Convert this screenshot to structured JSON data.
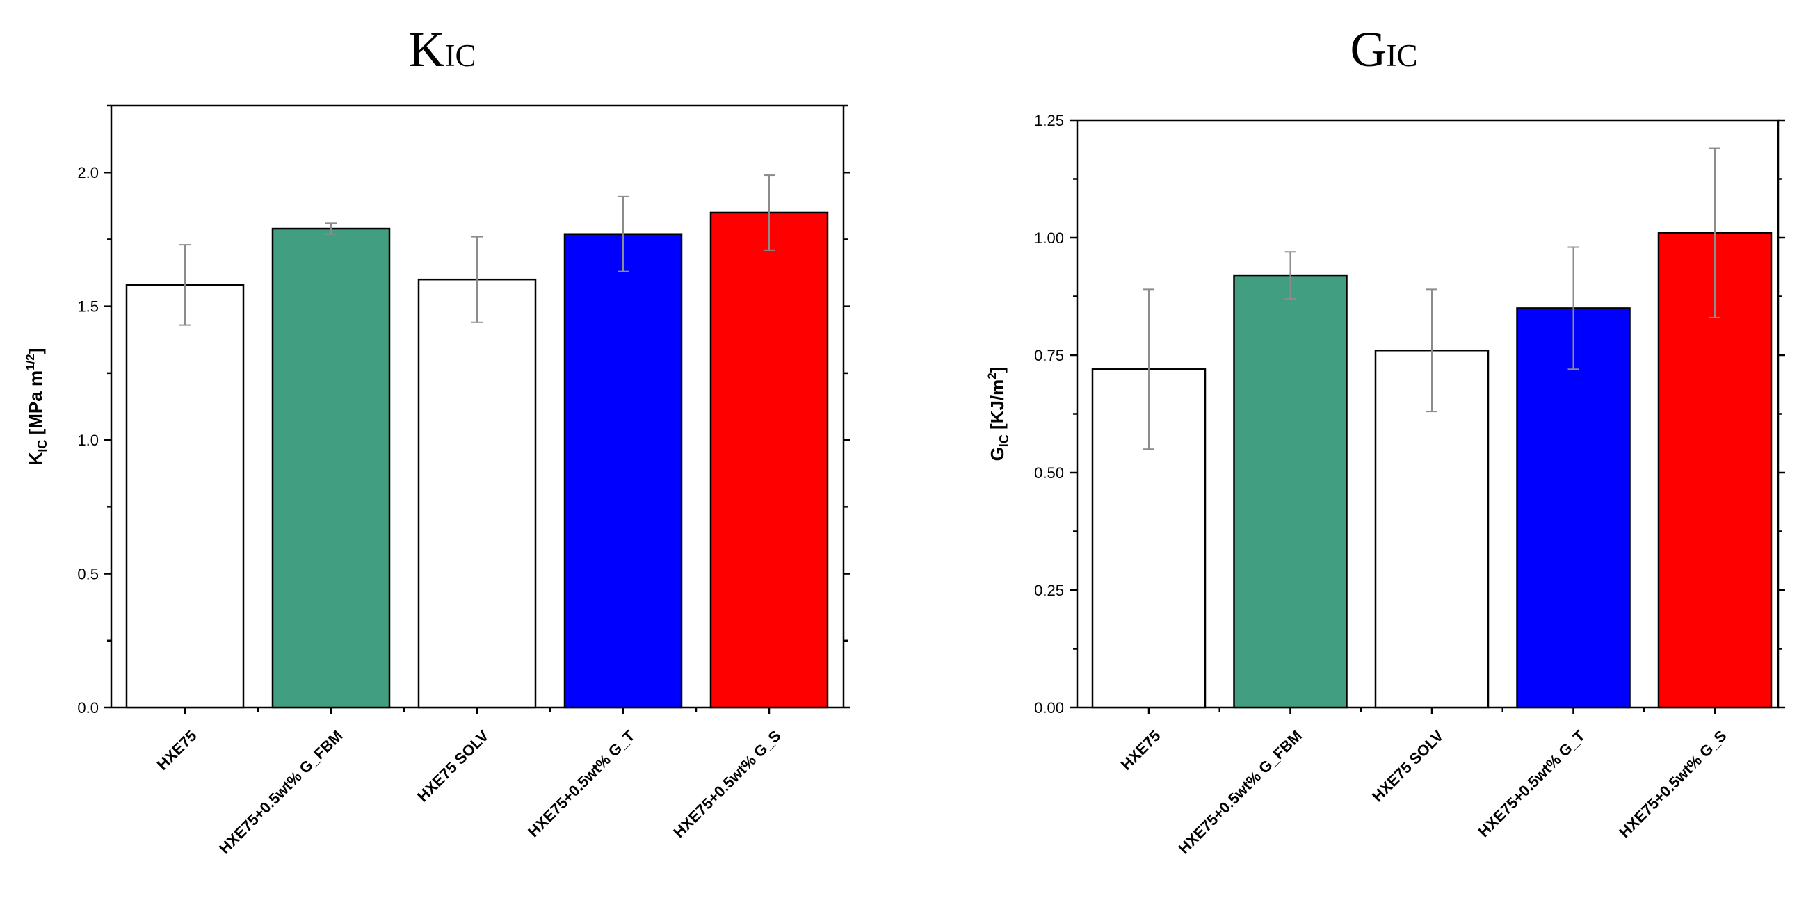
{
  "chart_data": [
    {
      "type": "bar",
      "title": "KIC",
      "title_main": "K",
      "title_sub": "IC",
      "ylabel": "KIC [MPa m1/2]",
      "ylabel_parts": {
        "main": "K",
        "sub": "IC",
        "unit_pre": " [MPa m",
        "unit_sup": "1/2",
        "unit_post": "]"
      },
      "xlabel": "",
      "categories": [
        "HXE75",
        "HXE75+0.5wt% G_FBM",
        "HXE75 SOLV",
        "HXE75+0.5wt% G_T",
        "HXE75+0.5wt% G_S"
      ],
      "values": [
        1.58,
        1.79,
        1.6,
        1.77,
        1.85
      ],
      "errors": [
        0.15,
        0.02,
        0.16,
        0.14,
        0.14
      ],
      "colors": [
        "#ffffff",
        "#419e80",
        "#ffffff",
        "#0000ff",
        "#ff0000"
      ],
      "ylim": [
        0,
        2.25
      ],
      "yticks": [
        0.0,
        0.5,
        1.0,
        1.5,
        2.0
      ],
      "ytick_labels": [
        "0.0",
        "0.5",
        "1.0",
        "1.5",
        "2.0"
      ],
      "minor_tick_step": 0.25
    },
    {
      "type": "bar",
      "title": "GIC",
      "title_main": "G",
      "title_sub": "IC",
      "ylabel": "GIC [KJ/m2]",
      "ylabel_parts": {
        "main": "G",
        "sub": "IC",
        "unit_pre": " [KJ/m",
        "unit_sup": "2",
        "unit_post": "]"
      },
      "xlabel": "",
      "categories": [
        "HXE75",
        "HXE75+0.5wt% G_FBM",
        "HXE75 SOLV",
        "HXE75+0.5wt% G_T",
        "HXE75+0.5wt% G_S"
      ],
      "values": [
        0.72,
        0.92,
        0.76,
        0.85,
        1.01
      ],
      "errors": [
        0.17,
        0.05,
        0.13,
        0.13,
        0.18
      ],
      "colors": [
        "#ffffff",
        "#419e80",
        "#ffffff",
        "#0000ff",
        "#ff0000"
      ],
      "ylim": [
        0,
        1.25
      ],
      "yticks": [
        0.0,
        0.25,
        0.5,
        0.75,
        1.0,
        1.25
      ],
      "ytick_labels": [
        "0.00",
        "0.25",
        "0.50",
        "0.75",
        "1.00",
        "1.25"
      ],
      "minor_tick_step": 0.125
    }
  ]
}
